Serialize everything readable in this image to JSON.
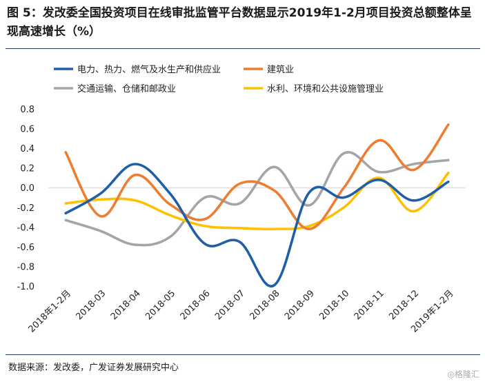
{
  "header": {
    "title": "图 5：发改委全国投资项目在线审批监管平台数据显示2019年1-2月项目投资总额整体呈现高速增长（%）"
  },
  "footer": {
    "source": "数据来源：发改委，广发证券发展研究中心",
    "watermark": "◎格隆汇"
  },
  "chart_data": {
    "type": "line",
    "title": "图 5：发改委全国投资项目在线审批监管平台数据显示2019年1-2月项目投资总额整体呈现高速增长（%）",
    "categories": [
      "2018年1-2月",
      "2018-03",
      "2018-04",
      "2018-05",
      "2018-06",
      "2018-07",
      "2018-08",
      "2018-09",
      "2018-10",
      "2018-11",
      "2018-12",
      "2019年1-2月"
    ],
    "ylim": [
      -1.0,
      0.8
    ],
    "yticks": [
      -1.0,
      -0.8,
      -0.6,
      -0.4,
      -0.2,
      0.0,
      0.2,
      0.4,
      0.6,
      0.8
    ],
    "ytick_labels": [
      "-1.0",
      "-0.8",
      "-0.6",
      "-0.4",
      "-0.2",
      "0.0",
      "0.2",
      "0.4",
      "0.6",
      "0.8"
    ],
    "grid": false,
    "legend_position": "top",
    "series": [
      {
        "name": "电力、热力、燃气及水生产和供应业",
        "color": "#1f5fa8",
        "values": [
          -0.26,
          -0.06,
          0.24,
          -0.06,
          -0.57,
          -0.55,
          -0.99,
          -0.05,
          -0.1,
          0.08,
          -0.13,
          0.06
        ]
      },
      {
        "name": "建筑业",
        "color": "#ed7d31",
        "values": [
          0.36,
          -0.29,
          0.13,
          -0.17,
          -0.32,
          0.04,
          -0.03,
          -0.42,
          0.0,
          0.48,
          0.18,
          0.64
        ]
      },
      {
        "name": "交通运输、仓储和邮政业",
        "color": "#a5a5a5",
        "values": [
          -0.33,
          -0.44,
          -0.58,
          -0.5,
          -0.1,
          -0.16,
          0.21,
          -0.18,
          0.35,
          0.16,
          0.24,
          0.28
        ]
      },
      {
        "name": "水利、环境和公共设施管理业",
        "color": "#ffc000",
        "values": [
          -0.16,
          -0.12,
          -0.13,
          -0.28,
          -0.39,
          -0.41,
          -0.42,
          -0.39,
          -0.2,
          0.1,
          -0.24,
          0.15
        ]
      }
    ]
  }
}
